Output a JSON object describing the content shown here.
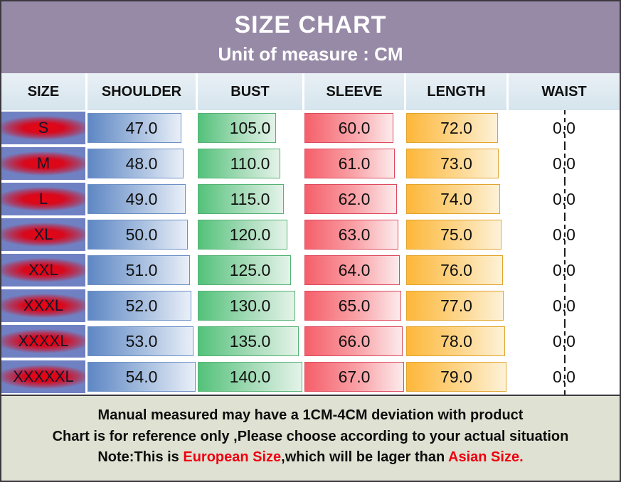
{
  "colors": {
    "header_bg": "#978aa7",
    "size_cell_blue": "#6f81c3",
    "size_cell_red": "#e60613",
    "footer_bg": "#dfe2d3",
    "note_red": "#ee0011",
    "border_dark": "#3c383f"
  },
  "header": {
    "title": "SIZE CHART",
    "subtitle": "Unit of measure : CM"
  },
  "table": {
    "columns": [
      "SIZE",
      "SHOULDER",
      "BUST",
      "SLEEVE",
      "LENGTH",
      "WAIST"
    ],
    "max": {
      "shoulder": 54,
      "bust": 140,
      "sleeve": 67,
      "length": 79
    },
    "bar_colors": {
      "shoulder": {
        "start": "#5e87c4",
        "mid": "#a9c0e0",
        "end": "#e9eff8",
        "border": "#6d90c5"
      },
      "bust": {
        "start": "#53c27a",
        "mid": "#a8dcba",
        "end": "#e4f3e9",
        "border": "#55b274"
      },
      "sleeve": {
        "start": "#f55f6a",
        "mid": "#f9a3a8",
        "end": "#fcebec",
        "border": "#dd4a5e"
      },
      "length": {
        "start": "#fdb73a",
        "mid": "#fdd68c",
        "end": "#fdf2d8",
        "border": "#e2a42e"
      }
    },
    "rows": [
      {
        "size": "S",
        "shoulder": "47.0",
        "bust": "105.0",
        "sleeve": "60.0",
        "length": "72.0",
        "waist": "0.0"
      },
      {
        "size": "M",
        "shoulder": "48.0",
        "bust": "110.0",
        "sleeve": "61.0",
        "length": "73.0",
        "waist": "0.0"
      },
      {
        "size": "L",
        "shoulder": "49.0",
        "bust": "115.0",
        "sleeve": "62.0",
        "length": "74.0",
        "waist": "0.0"
      },
      {
        "size": "XL",
        "shoulder": "50.0",
        "bust": "120.0",
        "sleeve": "63.0",
        "length": "75.0",
        "waist": "0.0"
      },
      {
        "size": "XXL",
        "shoulder": "51.0",
        "bust": "125.0",
        "sleeve": "64.0",
        "length": "76.0",
        "waist": "0.0"
      },
      {
        "size": "XXXL",
        "shoulder": "52.0",
        "bust": "130.0",
        "sleeve": "65.0",
        "length": "77.0",
        "waist": "0.0"
      },
      {
        "size": "XXXXL",
        "shoulder": "53.0",
        "bust": "135.0",
        "sleeve": "66.0",
        "length": "78.0",
        "waist": "0.0"
      },
      {
        "size": "XXXXXL",
        "shoulder": "54.0",
        "bust": "140.0",
        "sleeve": "67.0",
        "length": "79.0",
        "waist": "0.0"
      }
    ]
  },
  "footer": {
    "line1": "Manual measured may have a 1CM-4CM deviation with product",
    "line2": "Chart is for reference only ,Please choose according to your actual situation",
    "line3_segments": [
      {
        "text": "Note:This is ",
        "color": "#0d0d0d"
      },
      {
        "text": "European Size",
        "color": "#ee0011"
      },
      {
        "text": ",which will be lager than ",
        "color": "#0d0d0d"
      },
      {
        "text": "Asian Size",
        "color": "#ee0011"
      },
      {
        "text": ".",
        "color": "#ee0011"
      }
    ]
  },
  "chart_data": {
    "type": "table",
    "title": "SIZE CHART",
    "subtitle": "Unit of measure : CM",
    "unit": "CM",
    "columns": [
      "SIZE",
      "SHOULDER",
      "BUST",
      "SLEEVE",
      "LENGTH",
      "WAIST"
    ],
    "rows": [
      [
        "S",
        47.0,
        105.0,
        60.0,
        72.0,
        0.0
      ],
      [
        "M",
        48.0,
        110.0,
        61.0,
        73.0,
        0.0
      ],
      [
        "L",
        49.0,
        115.0,
        62.0,
        74.0,
        0.0
      ],
      [
        "XL",
        50.0,
        120.0,
        63.0,
        75.0,
        0.0
      ],
      [
        "XXL",
        51.0,
        125.0,
        64.0,
        76.0,
        0.0
      ],
      [
        "XXXL",
        52.0,
        130.0,
        65.0,
        77.0,
        0.0
      ],
      [
        "XXXXL",
        53.0,
        135.0,
        66.0,
        78.0,
        0.0
      ],
      [
        "XXXXXL",
        54.0,
        140.0,
        67.0,
        79.0,
        0.0
      ]
    ],
    "notes": "Data bars in SHOULDER/BUST/SLEEVE/LENGTH cells are proportional to value/column-max"
  }
}
